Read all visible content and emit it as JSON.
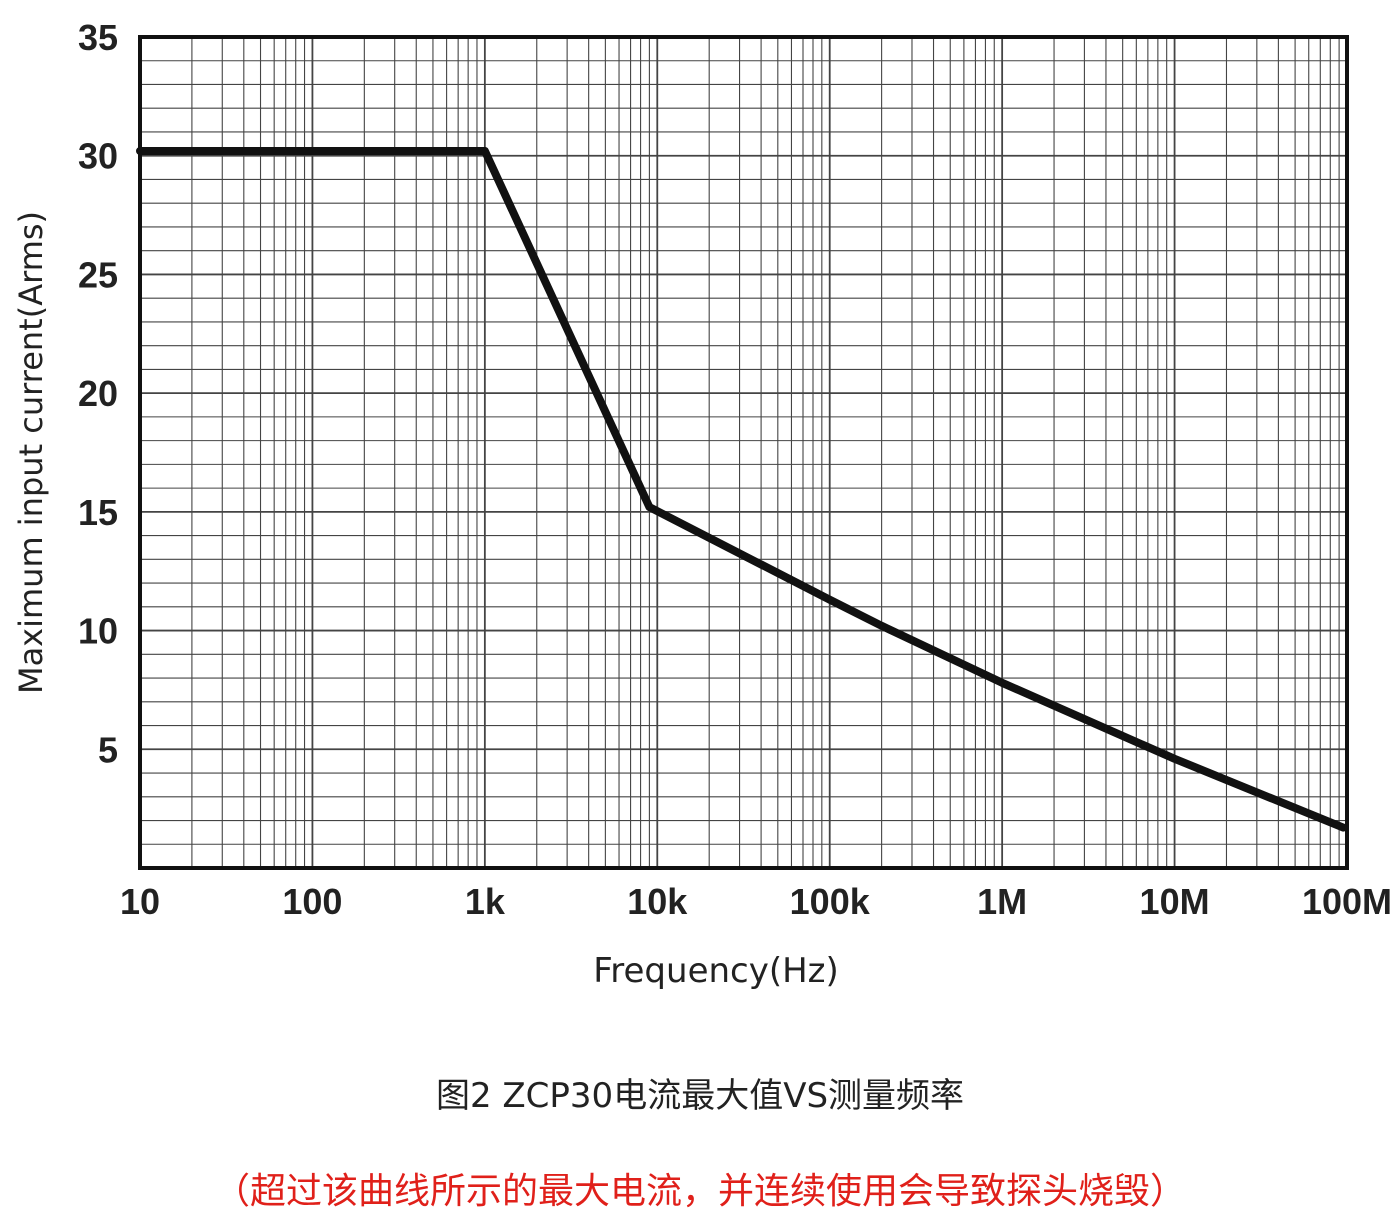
{
  "chart_data": {
    "type": "line",
    "xscale": "log",
    "xlim": [
      10,
      100000000
    ],
    "ylim": [
      0,
      35
    ],
    "grid": true,
    "xlabel": "Frequency(Hz)",
    "ylabel": "Maximum input current(Arms)",
    "xticks": [
      {
        "value": 10,
        "label": "10"
      },
      {
        "value": 100,
        "label": "100"
      },
      {
        "value": 1000,
        "label": "1k"
      },
      {
        "value": 10000,
        "label": "10k"
      },
      {
        "value": 100000,
        "label": "100k"
      },
      {
        "value": 1000000,
        "label": "1M"
      },
      {
        "value": 10000000,
        "label": "10M"
      },
      {
        "value": 100000000,
        "label": "100M"
      }
    ],
    "yticks": [
      {
        "value": 5,
        "label": "5"
      },
      {
        "value": 10,
        "label": "10"
      },
      {
        "value": 15,
        "label": "15"
      },
      {
        "value": 20,
        "label": "20"
      },
      {
        "value": 25,
        "label": "25"
      },
      {
        "value": 30,
        "label": "30"
      },
      {
        "value": 35,
        "label": "35"
      }
    ],
    "series": [
      {
        "points": [
          {
            "x": 10,
            "y": 30.2
          },
          {
            "x": 1000,
            "y": 30.2
          },
          {
            "x": 9000,
            "y": 15.2
          },
          {
            "x": 100000,
            "y": 11.3
          },
          {
            "x": 200000,
            "y": 10.2
          },
          {
            "x": 1000000,
            "y": 7.8
          },
          {
            "x": 10000000,
            "y": 4.6
          },
          {
            "x": 95000000,
            "y": 1.7
          }
        ]
      }
    ]
  },
  "caption": {
    "main": "图2  ZCP30电流最大值VS测量频率",
    "warning": "（超过该曲线所示的最大电流，并连续使用会导致探头烧毁）"
  },
  "colors": {
    "line": "#111111",
    "grid": "#444444",
    "warning": "#e0201a"
  }
}
